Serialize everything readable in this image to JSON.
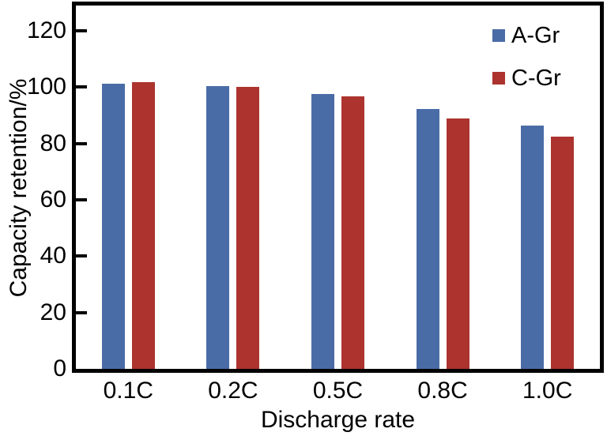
{
  "figure": {
    "background": "#ffffff",
    "frame_color": "#000000",
    "text_color": "#000000"
  },
  "chart_data": {
    "type": "bar",
    "title": "",
    "xlabel": "Discharge rate",
    "ylabel": "Capacity retention/%",
    "categories": [
      "0.1C",
      "0.2C",
      "0.5C",
      "0.8C",
      "1.0C"
    ],
    "series": [
      {
        "name": "A-Gr",
        "color": "#4a6ca6",
        "values": [
          101.2,
          100.3,
          97.6,
          92.2,
          86.5
        ]
      },
      {
        "name": "C-Gr",
        "color": "#ac332e",
        "values": [
          101.7,
          100.1,
          96.7,
          89.0,
          82.5
        ]
      }
    ],
    "ylim": [
      0,
      129
    ],
    "yticks": [
      0,
      20,
      40,
      60,
      80,
      100,
      120
    ],
    "grid": false,
    "legend_position": "top-right"
  }
}
